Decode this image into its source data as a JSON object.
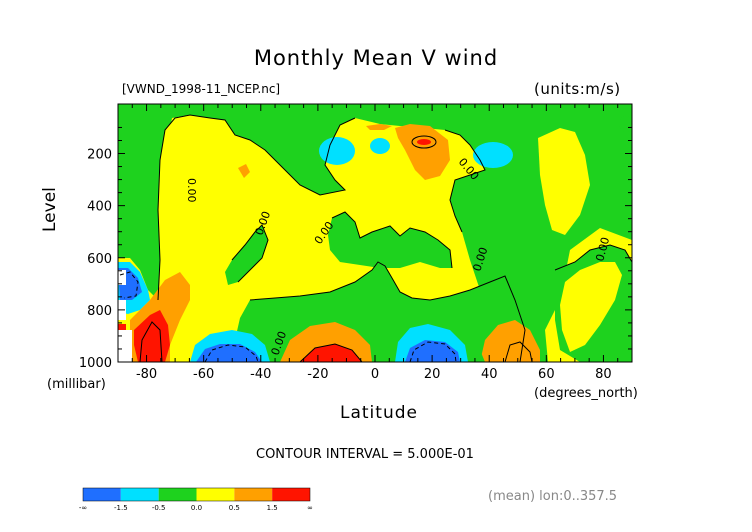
{
  "chart_data": {
    "type": "heatmap",
    "title": "Monthly Mean V wind",
    "subtitle": "[VWND_1998-11_NCEP.nc]",
    "units": "(units:m/s)",
    "xlabel": "Latitude",
    "x_unit": "(degrees_north)",
    "ylabel": "Level",
    "y_unit": "(millibar)",
    "xlim": [
      -90,
      90
    ],
    "ylim": [
      1000,
      10
    ],
    "x_ticks": [
      -80,
      -60,
      -40,
      -20,
      0,
      20,
      40,
      60,
      80
    ],
    "y_ticks": [
      1000,
      800,
      600,
      400,
      200
    ],
    "contour_interval_label": "CONTOUR INTERVAL = 5.000E-01",
    "contour_labels": [
      "0.00",
      "0.00",
      "0.00",
      "0.00",
      "0.00",
      "0.00",
      "0.00"
    ],
    "footer_note": "(mean) lon:0..357.5",
    "colorbar": {
      "colors": [
        "#1f6fff",
        "#00e0ff",
        "#1ed21e",
        "#ffff00",
        "#ffa000",
        "#ff1400"
      ],
      "tick_labels": [
        "-∞",
        "-1.5",
        "-0.5",
        "0.0",
        "0.5",
        "1.5",
        "∞"
      ]
    },
    "features": [
      {
        "kind": "max",
        "lat": -83,
        "level": 960,
        "value": 2.0
      },
      {
        "kind": "min",
        "lat": -52,
        "level": 980,
        "value": -2.0
      },
      {
        "kind": "max",
        "lat": -17,
        "level": 985,
        "value": 2.0
      },
      {
        "kind": "min",
        "lat": 18,
        "level": 970,
        "value": -2.0
      },
      {
        "kind": "max",
        "lat": 48,
        "level": 960,
        "value": 1.0
      },
      {
        "kind": "max",
        "lat": 17,
        "level": 150,
        "value": 1.5
      },
      {
        "kind": "min",
        "lat": -15,
        "level": 160,
        "value": -0.8
      },
      {
        "kind": "min",
        "lat": 42,
        "level": 160,
        "value": -0.8
      }
    ]
  }
}
